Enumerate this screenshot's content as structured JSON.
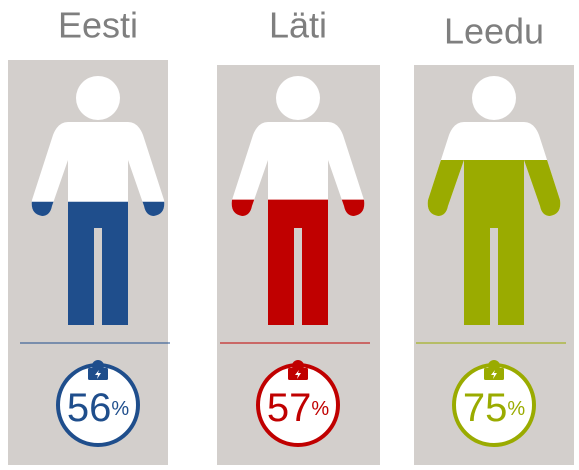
{
  "chart_data": {
    "type": "pictogram",
    "categories": [
      "Eesti",
      "Läti",
      "Leedu"
    ],
    "values": [
      56,
      57,
      75
    ],
    "value_labels": [
      "56%",
      "57%",
      "75%"
    ],
    "colors": [
      "#1f4e8c",
      "#c00000",
      "#9aab00"
    ],
    "ylim": [
      0,
      100
    ]
  }
}
